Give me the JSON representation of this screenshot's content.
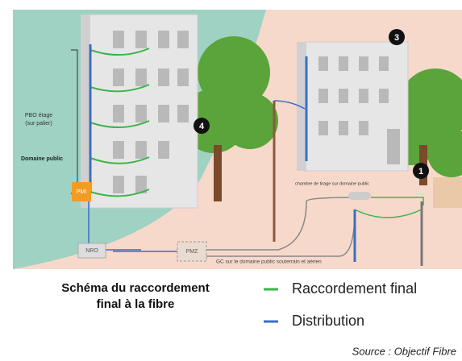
{
  "diagram": {
    "labels": {
      "pbo_line1": "PBO étage",
      "pbo_line2": "(sur palier)",
      "domaine_public": "Domaine public",
      "pmi": "PMI",
      "nro": "NRO",
      "pmz": "PMZ",
      "chambre": "chambre de tirage sur domaine public",
      "gc": "GC sur le domaine public souterrain et aérien"
    },
    "markers": [
      "1",
      "3",
      "4"
    ]
  },
  "title": [
    "Schéma du raccordement",
    "final à la fibre"
  ],
  "legend": [
    {
      "name": "Raccordement final",
      "color": "#3cb44b"
    },
    {
      "name": "Distribution",
      "color": "#3a6fc4"
    }
  ],
  "source": "Source : Objectif Fibre"
}
